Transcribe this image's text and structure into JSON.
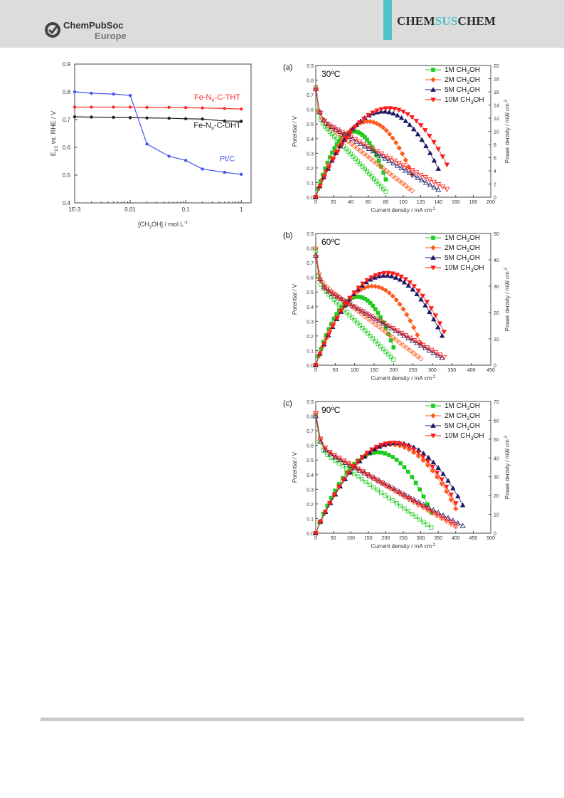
{
  "header": {
    "publisher_line1": "ChemPubSoc",
    "publisher_line2": "Europe",
    "journal_part1": "CHEM",
    "journal_part2": "SUS",
    "journal_part3": "CHEM",
    "colors": {
      "band": "#dcdcdc",
      "accent": "#4fc3c9"
    }
  },
  "chart_data": [
    {
      "type": "line",
      "ylabel": "E1/2 vs. RHE / V",
      "xlabel": "[CH3OH] / mol L-1",
      "x_scale": "log",
      "xlim": [
        0.001,
        1.5
      ],
      "ylim": [
        0.4,
        0.9
      ],
      "x_ticks": [
        "1E-3",
        "0.01",
        "0.1",
        "1"
      ],
      "y_ticks": [
        "0.4",
        "0.5",
        "0.6",
        "0.7",
        "0.8",
        "0.9"
      ],
      "series": [
        {
          "name": "Fe-Nx-C-THT",
          "color": "#ff2a2a",
          "x": [
            0.001,
            0.002,
            0.005,
            0.01,
            0.02,
            0.05,
            0.1,
            0.2,
            0.5,
            1
          ],
          "y": [
            0.745,
            0.745,
            0.745,
            0.745,
            0.744,
            0.744,
            0.743,
            0.742,
            0.74,
            0.738
          ]
        },
        {
          "name": "Fe-Nx-C-DHT",
          "color": "#222222",
          "x": [
            0.001,
            0.002,
            0.005,
            0.01,
            0.02,
            0.05,
            0.1,
            0.2,
            0.5,
            1
          ],
          "y": [
            0.71,
            0.709,
            0.708,
            0.707,
            0.706,
            0.705,
            0.703,
            0.702,
            0.695,
            0.694
          ]
        },
        {
          "name": "Pt/C",
          "color": "#4455ee",
          "x": [
            0.001,
            0.002,
            0.005,
            0.01,
            0.02,
            0.05,
            0.1,
            0.2,
            0.5,
            1
          ],
          "y": [
            0.8,
            0.795,
            0.792,
            0.787,
            0.612,
            0.568,
            0.553,
            0.522,
            0.51,
            0.503
          ]
        }
      ]
    },
    {
      "type": "line",
      "panel": "(a)",
      "temperature": "30ºC",
      "xlabel": "Current density / mA cm-2",
      "ylabel_left": "Potential / V",
      "ylabel_right": "Power density / mW cm-2",
      "xlim": [
        0,
        200
      ],
      "ylim_left": [
        0,
        0.9
      ],
      "ylim_right": [
        0,
        20
      ],
      "x_ticks": [
        "0",
        "20",
        "40",
        "60",
        "80",
        "100",
        "120",
        "140",
        "160",
        "180",
        "200"
      ],
      "y_ticks_left": [
        "0.0",
        "0.1",
        "0.2",
        "0.3",
        "0.4",
        "0.5",
        "0.6",
        "0.7",
        "0.8",
        "0.9"
      ],
      "y_ticks_right": [
        "0",
        "2",
        "4",
        "6",
        "8",
        "10",
        "12",
        "14",
        "16",
        "18",
        "20"
      ],
      "series": [
        {
          "name": "1M CH3OH",
          "color": "#1ecc1e",
          "marker": "square",
          "max_current": 80,
          "ocv": 0.75,
          "peak_power": 10
        },
        {
          "name": "2M CH3OH",
          "color": "#ff5a1e",
          "marker": "diamond",
          "max_current": 110,
          "ocv": 0.75,
          "peak_power": 11.5
        },
        {
          "name": "5M CH3OH",
          "color": "#1a1a66",
          "marker": "triangle-up",
          "max_current": 140,
          "ocv": 0.74,
          "peak_power": 13
        },
        {
          "name": "10M CH3OH",
          "color": "#ff1a1a",
          "marker": "triangle-down",
          "max_current": 150,
          "ocv": 0.73,
          "peak_power": 13.5
        }
      ]
    },
    {
      "type": "line",
      "panel": "(b)",
      "temperature": "60ºC",
      "xlabel": "Current density / mA cm-2",
      "ylabel_left": "Potential / V",
      "ylabel_right": "Power density / mW cm-2",
      "xlim": [
        0,
        450
      ],
      "ylim_left": [
        0,
        0.9
      ],
      "ylim_right": [
        0,
        50
      ],
      "x_ticks": [
        "0",
        "50",
        "100",
        "150",
        "200",
        "250",
        "300",
        "350",
        "400",
        "450"
      ],
      "y_ticks_left": [
        "0.0",
        "0.1",
        "0.2",
        "0.3",
        "0.4",
        "0.5",
        "0.6",
        "0.7",
        "0.8",
        "0.9"
      ],
      "y_ticks_right": [
        "0",
        "10",
        "20",
        "30",
        "40",
        "50"
      ],
      "series": [
        {
          "name": "1M CH3OH",
          "color": "#1ecc1e",
          "marker": "square",
          "max_current": 200,
          "ocv": 0.78,
          "peak_power": 26
        },
        {
          "name": "2M CH3OH",
          "color": "#ff5a1e",
          "marker": "diamond",
          "max_current": 270,
          "ocv": 0.8,
          "peak_power": 30
        },
        {
          "name": "5M CH3OH",
          "color": "#1a1a66",
          "marker": "triangle-up",
          "max_current": 325,
          "ocv": 0.75,
          "peak_power": 34
        },
        {
          "name": "10M CH3OH",
          "color": "#ff1a1a",
          "marker": "triangle-down",
          "max_current": 330,
          "ocv": 0.74,
          "peak_power": 35
        }
      ]
    },
    {
      "type": "line",
      "panel": "(c)",
      "temperature": "90ºC",
      "xlabel": "Current density / mA cm-2",
      "ylabel_left": "Potential / V",
      "ylabel_right": "Power density / mW cm-2",
      "xlim": [
        0,
        500
      ],
      "ylim_left": [
        0,
        0.9
      ],
      "ylim_right": [
        0,
        70
      ],
      "x_ticks": [
        "0",
        "50",
        "100",
        "150",
        "200",
        "250",
        "300",
        "350",
        "400",
        "450",
        "500"
      ],
      "y_ticks_left": [
        "0.0",
        "0.1",
        "0.2",
        "0.3",
        "0.4",
        "0.5",
        "0.6",
        "0.7",
        "0.8",
        "0.9"
      ],
      "y_ticks_right": [
        "0",
        "10",
        "20",
        "30",
        "40",
        "50",
        "60",
        "70"
      ],
      "series": [
        {
          "name": "1M CH3OH",
          "color": "#1ecc1e",
          "marker": "square",
          "max_current": 330,
          "ocv": 0.8,
          "peak_power": 43
        },
        {
          "name": "2M CH3OH",
          "color": "#ff5a1e",
          "marker": "diamond",
          "max_current": 400,
          "ocv": 0.82,
          "peak_power": 47
        },
        {
          "name": "5M CH3OH",
          "color": "#1a1a66",
          "marker": "triangle-up",
          "max_current": 420,
          "ocv": 0.8,
          "peak_power": 48
        },
        {
          "name": "10M CH3OH",
          "color": "#ff1a1a",
          "marker": "triangle-down",
          "max_current": 400,
          "ocv": 0.82,
          "peak_power": 48
        }
      ]
    }
  ]
}
